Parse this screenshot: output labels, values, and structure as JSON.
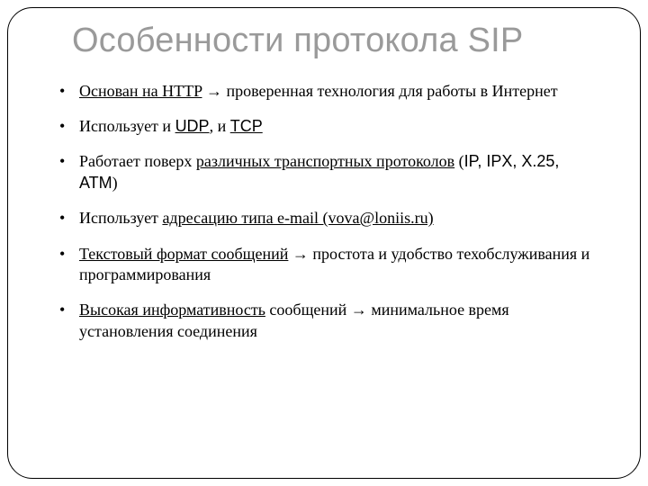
{
  "colors": {
    "background": "#ffffff",
    "title_color": "#9a9a9a",
    "text_color": "#000000",
    "border_color": "#000000"
  },
  "typography": {
    "title_font": "Arial",
    "title_size_pt": 28,
    "body_font": "Times New Roman",
    "body_size_pt": 14
  },
  "title": "Особенности протокола SIP",
  "bullets": [
    {
      "u1": "Основан на HTTP",
      "t1": " → проверенная технология для работы    в Интернет"
    },
    {
      "t0": "Использует и ",
      "u1": "UDP",
      "t1": ", и ",
      "u2": "TCP"
    },
    {
      "t0": "Работает поверх ",
      "u1": "различных транспортных протоколов",
      "t1": "  (",
      "s1": "IP, IPX, X.25, ATM",
      "t2": ")"
    },
    {
      "t0": "Использует ",
      "u1": "адресацию типа e-mail (vova@loniis.ru)"
    },
    {
      "u1": "Текстовый формат сообщений",
      "t1": " → простота и удобство техобслуживания и программирования"
    },
    {
      "u1": "Высокая информативность",
      "t1": " сообщений → минимальное       время установления соединения"
    }
  ]
}
